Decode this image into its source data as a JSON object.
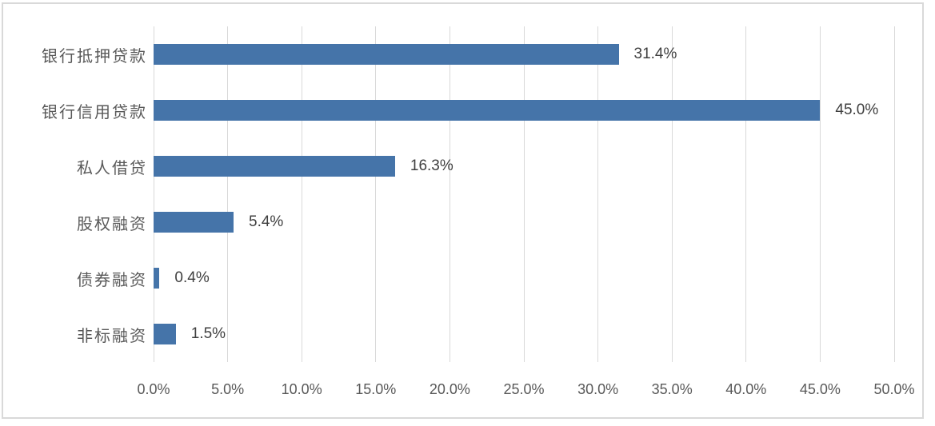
{
  "chart_data": {
    "type": "bar",
    "orientation": "horizontal",
    "title": "",
    "categories": [
      "银行抵押贷款",
      "银行信用贷款",
      "私人借贷",
      "股权融资",
      "债券融资",
      "非标融资"
    ],
    "values": [
      31.4,
      45.0,
      16.3,
      5.4,
      0.4,
      1.5
    ],
    "value_labels": [
      "31.4%",
      "45.0%",
      "16.3%",
      "5.4%",
      "0.4%",
      "1.5%"
    ],
    "x_tick_labels": [
      "0.0%",
      "5.0%",
      "10.0%",
      "15.0%",
      "20.0%",
      "25.0%",
      "30.0%",
      "35.0%",
      "40.0%",
      "45.0%",
      "50.0%"
    ],
    "xlim": [
      0,
      50
    ],
    "x_tick_step": 5,
    "grid": true,
    "legend": "none",
    "colors": {
      "bar": "#4574A9",
      "gridline": "#D9D9D9",
      "frame_border": "#D9D9D9",
      "category_text": "#595959",
      "tick_text": "#595959",
      "value_text": "#3F3F3F",
      "background": "#FFFFFF"
    }
  }
}
